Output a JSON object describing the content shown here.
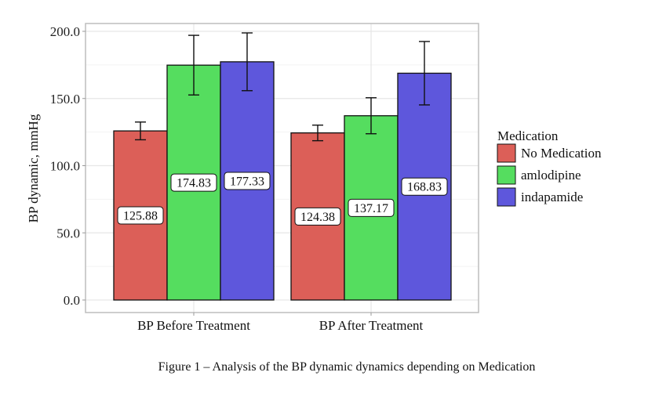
{
  "chart_data": {
    "type": "bar",
    "title": "",
    "caption": "Figure 1 – Analysis of the BP dynamic dynamics depending on Medication",
    "xlabel": "",
    "ylabel": "BP dynamic,  mmHg",
    "ylim": [
      0,
      200
    ],
    "yticks": [
      0,
      50,
      100,
      150,
      200
    ],
    "ytick_labels": [
      "0.0",
      "50.0",
      "100.0",
      "150.0",
      "200.0"
    ],
    "grid": true,
    "categories": [
      "BP Before Treatment",
      "BP After Treatment"
    ],
    "legend": {
      "title": "Medication",
      "position": "right"
    },
    "series": [
      {
        "name": "No Medication",
        "color": "#dc5f58",
        "values": [
          125.88,
          124.38
        ],
        "labels": [
          "125.88",
          "124.38"
        ],
        "errors": [
          6.6,
          5.8
        ]
      },
      {
        "name": "amlodipine",
        "color": "#55dd5f",
        "values": [
          174.83,
          137.17
        ],
        "labels": [
          "174.83",
          "137.17"
        ],
        "errors": [
          22.2,
          13.4
        ]
      },
      {
        "name": "indapamide",
        "color": "#5e57dc",
        "values": [
          177.33,
          168.83
        ],
        "labels": [
          "177.33",
          "168.83"
        ],
        "errors": [
          21.5,
          23.6
        ]
      }
    ]
  }
}
